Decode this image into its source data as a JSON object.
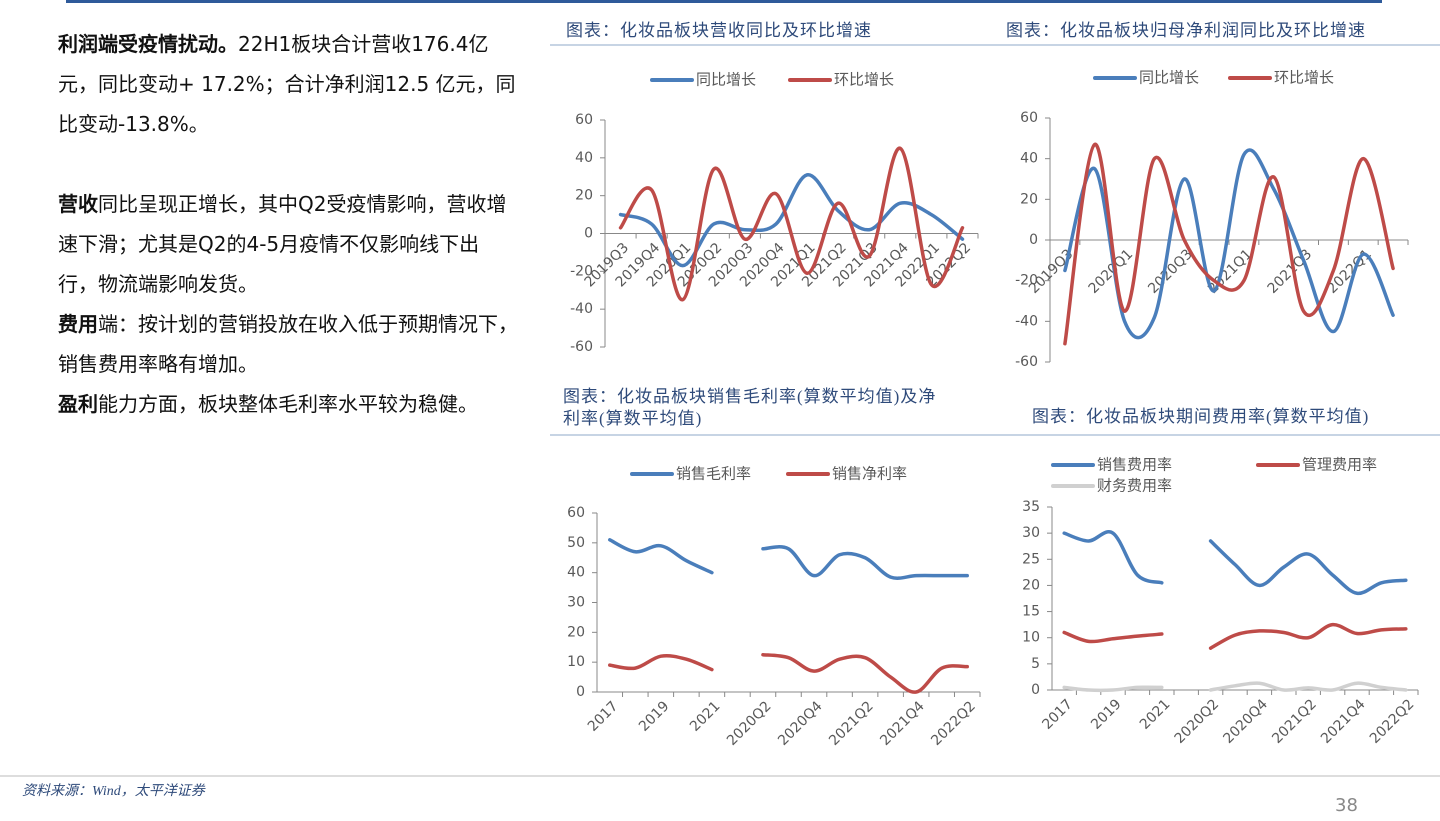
{
  "text": {
    "paragraphs": [
      {
        "bold": "利润端受疫情扰动。",
        "rest": "22H1板块合计营收176.4亿元，同比变动+ 17.2%；合计净利润12.5 亿元，同比变动-13.8%。"
      },
      {
        "bold": "营收",
        "rest": "同比呈现正增长，其中Q2受疫情影响，营收增速下滑；尤其是Q2的4-5月疫情不仅影响线下出行，物流端影响发货。"
      },
      {
        "bold": "费用",
        "rest": "端：按计划的营销投放在收入低于预期情况下，销售费用率略有增加。"
      },
      {
        "bold": "盈利",
        "rest": "能力方面，板块整体毛利率水平较为稳健。"
      }
    ]
  },
  "chart_data": [
    {
      "type": "line",
      "smooth": true,
      "title": "图表：化妆品板块营收同比及环比增速",
      "categories": [
        "2019Q3",
        "2019Q4",
        "2020Q1",
        "2020Q2",
        "2020Q3",
        "2020Q4",
        "2021Q1",
        "2021Q2",
        "2021Q3",
        "2021Q4",
        "2022Q1",
        "2022Q2"
      ],
      "series": [
        {
          "name": "同比增长",
          "color": "#4a7ebb",
          "values": [
            10,
            5,
            -17,
            5,
            2,
            5,
            31,
            12,
            2,
            16,
            10,
            -3
          ]
        },
        {
          "name": "环比增长",
          "color": "#be4b48",
          "values": [
            3,
            23,
            -35,
            34,
            -3,
            21,
            -21,
            16,
            -12,
            45,
            -27,
            3
          ]
        }
      ],
      "ylim": [
        -60,
        60
      ],
      "yticks": [
        -60,
        -40,
        -20,
        0,
        20,
        40,
        60
      ]
    },
    {
      "type": "line",
      "smooth": true,
      "title": "图表：化妆品板块归母净利润同比及环比增速",
      "categories": [
        "2019Q3",
        null,
        "2020Q1",
        null,
        "2020Q3",
        null,
        "2021Q1",
        null,
        "2021Q3",
        null,
        "2022Q1",
        null
      ],
      "series": [
        {
          "name": "同比增长",
          "color": "#4a7ebb",
          "values": [
            -15,
            35,
            -40,
            -38,
            30,
            -25,
            42,
            25,
            -10,
            -45,
            -7,
            -37
          ]
        },
        {
          "name": "环比增长",
          "color": "#be4b48",
          "values": [
            -51,
            47,
            -35,
            40,
            0,
            -20,
            -20,
            31,
            -35,
            -15,
            40,
            -14
          ]
        }
      ],
      "ylim": [
        -60,
        60
      ],
      "yticks": [
        -60,
        -40,
        -20,
        0,
        20,
        40,
        60
      ]
    },
    {
      "type": "line",
      "smooth": true,
      "title": "图表：化妆品板块销售毛利率(算数平均值)及净利率(算数平均值)",
      "categories": [
        "2017",
        null,
        "2019",
        null,
        "2021",
        null,
        "2020Q2",
        null,
        "2020Q4",
        null,
        "2021Q2",
        null,
        "2021Q4",
        null,
        "2022Q2"
      ],
      "series": [
        {
          "name": "销售毛利率",
          "color": "#4a7ebb",
          "values": [
            51,
            47,
            49,
            44,
            40,
            null,
            48,
            48,
            39,
            46,
            45,
            38.5,
            39,
            39,
            39
          ]
        },
        {
          "name": "销售净利率",
          "color": "#be4b48",
          "values": [
            9,
            8,
            12,
            11,
            7.5,
            null,
            12.5,
            11.5,
            7,
            11,
            11.5,
            5,
            0,
            8,
            8.5
          ]
        }
      ],
      "ylim": [
        0,
        60
      ],
      "yticks": [
        0,
        10,
        20,
        30,
        40,
        50,
        60
      ]
    },
    {
      "type": "line",
      "smooth": true,
      "title": "图表：化妆品板块期间费用率(算数平均值)",
      "categories": [
        "2017",
        null,
        "2019",
        null,
        "2021",
        null,
        "2020Q2",
        null,
        "2020Q4",
        null,
        "2021Q2",
        null,
        "2021Q4",
        null,
        "2022Q2"
      ],
      "series": [
        {
          "name": "销售费用率",
          "color": "#4a7ebb",
          "values": [
            30,
            28.5,
            30,
            22,
            20.5,
            null,
            28.5,
            24,
            20,
            23.5,
            26,
            22,
            18.5,
            20.5,
            21
          ]
        },
        {
          "name": "管理费用率",
          "color": "#be4b48",
          "values": [
            11,
            9.3,
            9.8,
            10.3,
            10.7,
            null,
            8,
            10.5,
            11.3,
            11,
            10,
            12.5,
            10.8,
            11.5,
            11.7
          ]
        },
        {
          "name": "财务费用率",
          "color": "#d0d0d0",
          "values": [
            0.5,
            0,
            0,
            0.5,
            0.5,
            null,
            0,
            0.8,
            1.3,
            0,
            0.4,
            0,
            1.3,
            0.5,
            0
          ]
        }
      ],
      "ylim": [
        0,
        35
      ],
      "yticks": [
        0,
        5,
        10,
        15,
        20,
        25,
        30,
        35
      ]
    }
  ],
  "footer": {
    "source": "资料来源：Wind，太平洋证券",
    "page": "38"
  }
}
